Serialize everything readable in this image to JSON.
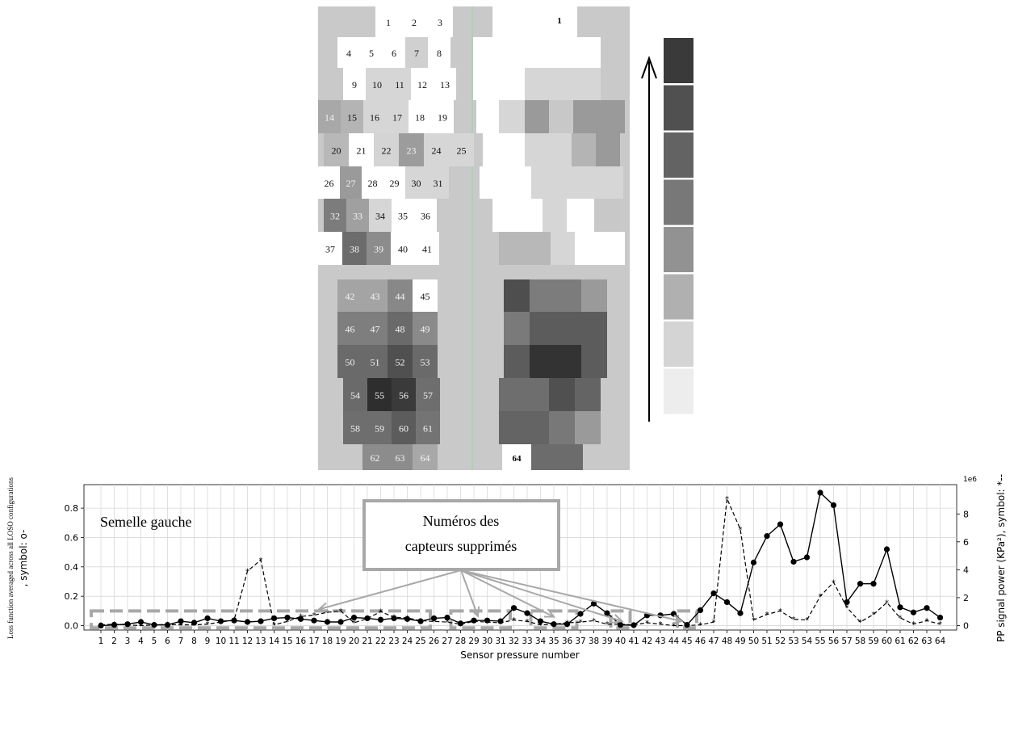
{
  "colors": {
    "grid_bg": "#c9c9c9",
    "scale": [
      "#3a3a3a",
      "#505050",
      "#636363",
      "#787878",
      "#929292",
      "#b0b0b0",
      "#d4d4d4",
      "#ededed"
    ],
    "line": "#000000",
    "annotation": "#a8a8a8"
  },
  "heatmap": {
    "left_sensors": [
      {
        "n": "1",
        "g": "#ffffff"
      },
      {
        "n": "2",
        "g": "#ffffff"
      },
      {
        "n": "3",
        "g": "#ffffff"
      },
      {
        "n": "4",
        "g": "#ffffff"
      },
      {
        "n": "5",
        "g": "#ffffff"
      },
      {
        "n": "6",
        "g": "#ffffff"
      },
      {
        "n": "7",
        "g": "#d0d0d0"
      },
      {
        "n": "8",
        "g": "#ffffff"
      },
      {
        "n": "9",
        "g": "#ffffff"
      },
      {
        "n": "10",
        "g": "#d6d6d6"
      },
      {
        "n": "11",
        "g": "#d6d6d6"
      },
      {
        "n": "12",
        "g": "#ffffff"
      },
      {
        "n": "13",
        "g": "#ffffff"
      },
      {
        "n": "14",
        "g": "#a8a8a8"
      },
      {
        "n": "15",
        "g": "#b4b4b4"
      },
      {
        "n": "16",
        "g": "#d6d6d6"
      },
      {
        "n": "17",
        "g": "#d6d6d6"
      },
      {
        "n": "18",
        "g": "#ffffff"
      },
      {
        "n": "19",
        "g": "#ffffff"
      },
      {
        "n": "20",
        "g": "#b8b8b8"
      },
      {
        "n": "21",
        "g": "#ffffff"
      },
      {
        "n": "22",
        "g": "#d4d4d4"
      },
      {
        "n": "23",
        "g": "#9c9c9c"
      },
      {
        "n": "24",
        "g": "#d6d6d6"
      },
      {
        "n": "25",
        "g": "#d6d6d6"
      },
      {
        "n": "26",
        "g": "#ffffff"
      },
      {
        "n": "27",
        "g": "#9a9a9a"
      },
      {
        "n": "28",
        "g": "#ffffff"
      },
      {
        "n": "29",
        "g": "#ffffff"
      },
      {
        "n": "30",
        "g": "#d6d6d6"
      },
      {
        "n": "31",
        "g": "#d6d6d6"
      },
      {
        "n": "32",
        "g": "#7c7c7c"
      },
      {
        "n": "33",
        "g": "#a0a0a0"
      },
      {
        "n": "34",
        "g": "#d6d6d6"
      },
      {
        "n": "35",
        "g": "#ffffff"
      },
      {
        "n": "36",
        "g": "#ffffff"
      },
      {
        "n": "37",
        "g": "#ffffff"
      },
      {
        "n": "38",
        "g": "#6c6c6c"
      },
      {
        "n": "39",
        "g": "#8c8c8c"
      },
      {
        "n": "40",
        "g": "#ffffff"
      },
      {
        "n": "41",
        "g": "#ffffff"
      },
      {
        "n": "42",
        "g": "#a4a4a4"
      },
      {
        "n": "43",
        "g": "#a4a4a4"
      },
      {
        "n": "44",
        "g": "#888888"
      },
      {
        "n": "45",
        "g": "#ffffff"
      },
      {
        "n": "46",
        "g": "#7e7e7e"
      },
      {
        "n": "47",
        "g": "#7e7e7e"
      },
      {
        "n": "48",
        "g": "#6a6a6a"
      },
      {
        "n": "49",
        "g": "#8a8a8a"
      },
      {
        "n": "50",
        "g": "#6a6a6a"
      },
      {
        "n": "51",
        "g": "#6a6a6a"
      },
      {
        "n": "52",
        "g": "#505050"
      },
      {
        "n": "53",
        "g": "#6a6a6a"
      },
      {
        "n": "54",
        "g": "#6a6a6a"
      },
      {
        "n": "55",
        "g": "#2e2e2e"
      },
      {
        "n": "56",
        "g": "#3a3a3a"
      },
      {
        "n": "57",
        "g": "#6e6e6e"
      },
      {
        "n": "58",
        "g": "#6e6e6e"
      },
      {
        "n": "59",
        "g": "#6e6e6e"
      },
      {
        "n": "60",
        "g": "#5c5c5c"
      },
      {
        "n": "61",
        "g": "#747474"
      },
      {
        "n": "62",
        "g": "#8c8c8c"
      },
      {
        "n": "63",
        "g": "#8c8c8c"
      },
      {
        "n": "64",
        "g": "#a8a8a8"
      }
    ],
    "right_labels": [
      "1",
      "64"
    ]
  },
  "chart_data": {
    "type": "line",
    "annotation_title": "Semelle gauche",
    "callout_text_line1": "Numéros des",
    "callout_text_line2": "capteurs supprimés",
    "xlabel": "Sensor pressure number",
    "ylabel_left_line1": "Loss function averaged across all LOSO configurations",
    "ylabel_left_line2": ", symbol: o-",
    "ylabel_right": "PP signal power (KPa²), symbol: *--",
    "right_axis_multiplier": "1e6",
    "x": [
      1,
      2,
      3,
      4,
      5,
      6,
      7,
      8,
      9,
      10,
      11,
      12,
      13,
      14,
      15,
      16,
      17,
      18,
      19,
      20,
      21,
      22,
      23,
      24,
      25,
      26,
      27,
      28,
      29,
      30,
      31,
      32,
      33,
      34,
      35,
      36,
      37,
      38,
      39,
      40,
      41,
      42,
      43,
      44,
      45,
      46,
      47,
      48,
      49,
      50,
      51,
      52,
      53,
      54,
      55,
      56,
      57,
      58,
      59,
      60,
      61,
      62,
      63,
      64
    ],
    "ylim_left": [
      -0.03,
      0.96
    ],
    "yticks_left": [
      "0.0",
      "0.2",
      "0.4",
      "0.6",
      "0.8"
    ],
    "ylim_right": [
      -0.32,
      10.1
    ],
    "yticks_right": [
      "0",
      "2",
      "4",
      "6",
      "8"
    ],
    "series": [
      {
        "marker": "o",
        "style": "solid",
        "values": [
          0.0,
          0.005,
          0.01,
          0.025,
          0.005,
          0.005,
          0.03,
          0.02,
          0.05,
          0.03,
          0.035,
          0.025,
          0.03,
          0.05,
          0.055,
          0.045,
          0.035,
          0.025,
          0.025,
          0.055,
          0.05,
          0.04,
          0.05,
          0.045,
          0.03,
          0.05,
          0.055,
          0.015,
          0.035,
          0.035,
          0.03,
          0.12,
          0.085,
          0.03,
          0.01,
          0.01,
          0.08,
          0.15,
          0.085,
          0.005,
          0.003,
          0.07,
          0.07,
          0.08,
          0.005,
          0.105,
          0.22,
          0.16,
          0.085,
          0.43,
          0.61,
          0.69,
          0.435,
          0.465,
          0.905,
          0.82,
          0.16,
          0.285,
          0.285,
          0.52,
          0.125,
          0.09,
          0.12,
          0.055
        ]
      },
      {
        "marker": "*",
        "style": "dashed",
        "values": [
          0.05,
          0.1,
          0.05,
          0.0,
          0.05,
          0.08,
          0.05,
          0.05,
          0.1,
          0.25,
          0.4,
          3.9,
          4.7,
          0.05,
          0.3,
          0.65,
          0.75,
          0.95,
          1.05,
          0.2,
          0.5,
          1.0,
          0.6,
          0.55,
          0.35,
          0.3,
          0.25,
          0.1,
          0.3,
          0.25,
          0.2,
          0.4,
          0.3,
          0.05,
          0.1,
          0.2,
          0.25,
          0.35,
          0.1,
          0.1,
          0.05,
          0.2,
          0.1,
          0.0,
          0.0,
          0.05,
          0.25,
          9.1,
          6.9,
          0.4,
          0.8,
          1.05,
          0.45,
          0.4,
          2.1,
          3.1,
          1.3,
          0.25,
          0.8,
          1.65,
          0.55,
          0.1,
          0.35,
          0.1
        ]
      }
    ],
    "removed_groups": [
      [
        1,
        25
      ],
      [
        28,
        31
      ],
      [
        34,
        36
      ],
      [
        40,
        40
      ],
      [
        45,
        45
      ]
    ]
  }
}
